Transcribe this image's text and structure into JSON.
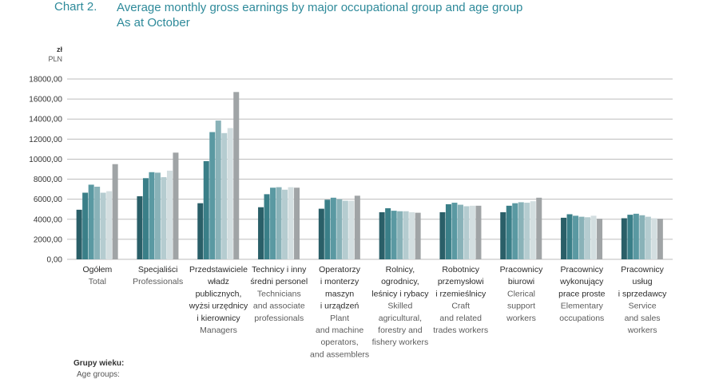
{
  "header": {
    "chart_label": "Chart 2.",
    "title_line1": "Average monthly gross earnings by major occupational group and age group",
    "title_line2": "As at October"
  },
  "unit": {
    "pl": "zł",
    "en": "PLN"
  },
  "legend": {
    "pl": "Grupy wieku:",
    "en": "Age groups:"
  },
  "colors": {
    "series": [
      "#2a5f68",
      "#3a7f88",
      "#5a99a2",
      "#89b2b8",
      "#b5ccd0",
      "#d3dee0",
      "#a0a4a6"
    ],
    "grid": "#bdbdbd",
    "axis_text": "#333333",
    "label_pl": "#2b2b2b",
    "label_en": "#5c5c5c",
    "title": "#2e8a9a"
  },
  "chart_data": {
    "type": "bar",
    "title": "Average monthly gross earnings by major occupational group and age group",
    "subtitle": "As at October",
    "ylabel": "zł PLN",
    "ylim": [
      0,
      18000
    ],
    "yticks": [
      "0,00",
      "2000,00",
      "4000,00",
      "6000,00",
      "8000,00",
      "10000,00",
      "12000,00",
      "14000,00",
      "16000,00",
      "18000,00"
    ],
    "grid": true,
    "categories": [
      {
        "pl": [
          "Ogółem"
        ],
        "en": [
          "Total"
        ]
      },
      {
        "pl": [
          "Specjaliści"
        ],
        "en": [
          "Professionals"
        ]
      },
      {
        "pl": [
          "Przedstawiciele",
          "władz",
          "publicznych,",
          "wyżsi urzędnicy",
          "i kierownicy"
        ],
        "en": [
          "Managers"
        ]
      },
      {
        "pl": [
          "Technicy i inny",
          "średni personel"
        ],
        "en": [
          "Technicians",
          "and associate",
          "professionals"
        ]
      },
      {
        "pl": [
          "Operatorzy",
          "i monterzy",
          "maszyn",
          "i urządzeń"
        ],
        "en": [
          "Plant",
          "and machine",
          "operators,",
          "and assemblers"
        ]
      },
      {
        "pl": [
          "Rolnicy,",
          "ogrodnicy,",
          "leśnicy i rybacy"
        ],
        "en": [
          "Skilled",
          "agricultural,",
          "forestry and",
          "fishery workers"
        ]
      },
      {
        "pl": [
          "Robotnicy",
          "przemysłowi",
          "i rzemieślnicy"
        ],
        "en": [
          "Craft",
          "and related",
          "trades workers"
        ]
      },
      {
        "pl": [
          "Pracownicy",
          "biurowi"
        ],
        "en": [
          "Clerical",
          "support",
          "workers"
        ]
      },
      {
        "pl": [
          "Pracownicy",
          "wykonujący",
          "prace proste"
        ],
        "en": [
          "Elementary",
          "occupations"
        ]
      },
      {
        "pl": [
          "Pracownicy",
          "usług",
          "i sprzedawcy"
        ],
        "en": [
          "Service",
          "and sales",
          "workers"
        ]
      }
    ],
    "series": [
      {
        "values": [
          4950,
          6300,
          5600,
          5200,
          5050,
          4700,
          4700,
          4700,
          4150,
          4100
        ]
      },
      {
        "values": [
          6650,
          8100,
          9800,
          6500,
          5950,
          5100,
          5500,
          5350,
          4500,
          4450
        ]
      },
      {
        "values": [
          7450,
          8700,
          12700,
          7150,
          6150,
          4850,
          5650,
          5600,
          4350,
          4550
        ]
      },
      {
        "values": [
          7250,
          8650,
          13850,
          7200,
          6000,
          4800,
          5450,
          5700,
          4250,
          4400
        ]
      },
      {
        "values": [
          6650,
          8200,
          12600,
          6950,
          5850,
          4800,
          5300,
          5650,
          4200,
          4250
        ]
      },
      {
        "values": [
          6800,
          8850,
          13100,
          7200,
          5850,
          4700,
          5350,
          5800,
          4350,
          4100
        ]
      },
      {
        "values": [
          9500,
          10650,
          16700,
          7150,
          6350,
          4650,
          5350,
          6150,
          4050,
          4050
        ]
      }
    ]
  }
}
